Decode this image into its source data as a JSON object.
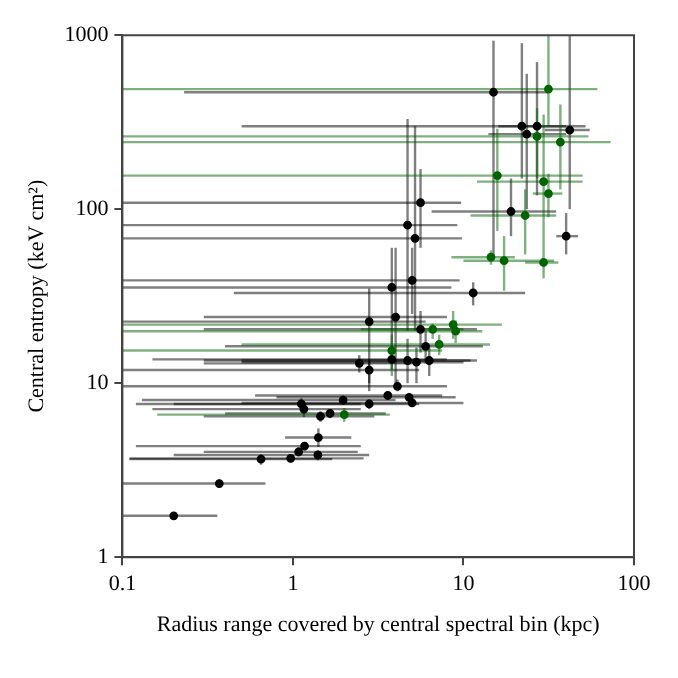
{
  "chart_data": {
    "type": "scatter",
    "xlabel": "Radius range covered by central spectral bin (kpc)",
    "ylabel": "Central entropy (keV cm²)",
    "log": "xy",
    "grid": false,
    "legend": false,
    "marker": "circle",
    "xlim": [
      0.1,
      100
    ],
    "xticks": [
      0.1,
      1,
      10,
      100
    ],
    "ylim": [
      1,
      1000
    ],
    "yticks": [
      1,
      10,
      100,
      1000
    ],
    "series": [
      {
        "color": "#000000",
        "x": [
          15,
          22,
          27,
          23.5,
          42,
          5.6,
          19,
          4.7,
          5.2,
          40,
          5.0,
          3.8,
          11.4,
          4.0,
          2.8,
          5.6,
          6.0,
          3.8,
          4.7,
          5.3,
          6.3,
          2.45,
          2.8,
          4.1,
          3.6,
          4.8,
          5.0,
          1.97,
          2.8,
          1.12,
          1.16,
          1.65,
          1.45,
          1.41,
          1.17,
          1.08,
          0.97,
          1.4,
          0.65,
          0.37,
          0.2
        ],
        "values": [
          470,
          300,
          300,
          270,
          285,
          109,
          97,
          81,
          68,
          70,
          39,
          35.5,
          33,
          24,
          22.6,
          20.4,
          16.3,
          13.7,
          13.5,
          13.2,
          13.5,
          13,
          11.9,
          9.6,
          8.5,
          8.3,
          7.7,
          8.0,
          7.6,
          7.6,
          7.1,
          6.7,
          6.45,
          4.87,
          4.35,
          4.03,
          3.7,
          3.87,
          3.66,
          2.65,
          1.73
        ],
        "xerrors": [
          [
            0.23,
            31
          ],
          [
            0.5,
            52
          ],
          [
            16,
            40
          ],
          [
            14,
            40
          ],
          [
            30,
            55
          ],
          [
            0.1,
            9.7
          ],
          [
            6.5,
            35
          ],
          [
            0.1,
            9.2
          ],
          [
            0.1,
            9.8
          ],
          [
            35,
            47
          ],
          [
            0.1,
            9.5
          ],
          [
            0.1,
            8.5
          ],
          [
            0.45,
            23
          ],
          [
            0.3,
            8
          ],
          [
            0.1,
            6
          ],
          [
            0.3,
            12
          ],
          [
            0.4,
            13
          ],
          [
            0.15,
            8
          ],
          [
            0.3,
            11
          ],
          [
            0.5,
            10
          ],
          [
            0.5,
            12
          ],
          [
            0.3,
            5
          ],
          [
            0.1,
            5.5
          ],
          [
            0.1,
            8
          ],
          [
            0.6,
            7.5
          ],
          [
            0.8,
            9
          ],
          [
            0.5,
            10
          ],
          [
            0.13,
            4
          ],
          [
            0.2,
            5.5
          ],
          [
            0.12,
            2.5
          ],
          [
            0.15,
            2.5
          ],
          [
            0.4,
            3.5
          ],
          [
            0.3,
            3
          ],
          [
            0.9,
            2.2
          ],
          [
            0.12,
            2.5
          ],
          [
            0.3,
            2.4
          ],
          [
            0.11,
            2.6
          ],
          [
            0.2,
            2.8
          ],
          [
            0.11,
            1.7
          ],
          [
            0.1,
            0.69
          ],
          [
            0.1,
            0.36
          ]
        ],
        "errors": [
          [
            52,
            930
          ],
          [
            150,
            900
          ],
          [
            120,
            700
          ],
          [
            100,
            600
          ],
          [
            100,
            1000
          ],
          [
            60,
            170
          ],
          [
            70,
            150
          ],
          [
            20,
            330
          ],
          [
            20,
            300
          ],
          [
            55,
            95
          ],
          [
            25,
            60
          ],
          [
            15,
            60
          ],
          [
            28,
            38
          ],
          [
            10,
            60
          ],
          [
            9,
            35
          ],
          [
            15,
            26
          ],
          [
            13,
            20
          ],
          [
            12,
            16
          ],
          [
            10,
            18
          ],
          [
            10,
            16
          ],
          [
            11,
            16
          ],
          [
            11.5,
            14.5
          ],
          [
            10,
            13.5
          ],
          [
            9,
            10.5
          ],
          [
            8,
            9
          ],
          [
            7.8,
            8.8
          ],
          [
            7.3,
            8.1
          ],
          [
            7.5,
            8.5
          ],
          [
            7.1,
            8.1
          ],
          [
            7,
            8.2
          ],
          [
            6.4,
            7.6
          ],
          [
            6.3,
            7.1
          ],
          [
            6,
            6.9
          ],
          [
            4.3,
            5.5
          ],
          [
            4.1,
            4.6
          ],
          [
            3.8,
            4.3
          ],
          [
            3.5,
            3.9
          ],
          [
            3.6,
            4.1
          ],
          [
            3.4,
            3.9
          ],
          [
            2.5,
            2.8
          ],
          [
            1.65,
            1.8
          ]
        ]
      },
      {
        "color": "#006400",
        "x": [
          31.5,
          27,
          37,
          15.8,
          29.5,
          31.5,
          23,
          14.5,
          17.3,
          29.5,
          8.7,
          9.0,
          7.2,
          3.8,
          2.0,
          6.6
        ],
        "values": [
          490,
          262,
          243,
          156,
          144,
          123,
          92,
          53,
          50.6,
          49.4,
          21.7,
          19.9,
          16.7,
          15.4,
          6.6,
          20.4
        ],
        "xerrors": [
          [
            0.1,
            61
          ],
          [
            0.1,
            54
          ],
          [
            0.1,
            73
          ],
          [
            0.1,
            50
          ],
          [
            12,
            50
          ],
          [
            25.5,
            38
          ],
          [
            11,
            35
          ],
          [
            8.5,
            20
          ],
          [
            10,
            34
          ],
          [
            23,
            36
          ],
          [
            0.1,
            16.8
          ],
          [
            0.1,
            12.9
          ],
          [
            0.5,
            14.3
          ],
          [
            0.1,
            7.5
          ],
          [
            0.16,
            3.7
          ],
          [
            2.5,
            10
          ]
        ],
        "errors": [
          [
            300,
            1000
          ],
          [
            150,
            380
          ],
          [
            130,
            400
          ],
          [
            75,
            290
          ],
          [
            60,
            350
          ],
          [
            90,
            160
          ],
          [
            55,
            130
          ],
          [
            48,
            58
          ],
          [
            34,
            70
          ],
          [
            40,
            60
          ],
          [
            18,
            26
          ],
          [
            17,
            23
          ],
          [
            14.5,
            19
          ],
          [
            11,
            19
          ],
          [
            6,
            7.2
          ],
          [
            18,
            22
          ]
        ]
      }
    ]
  }
}
